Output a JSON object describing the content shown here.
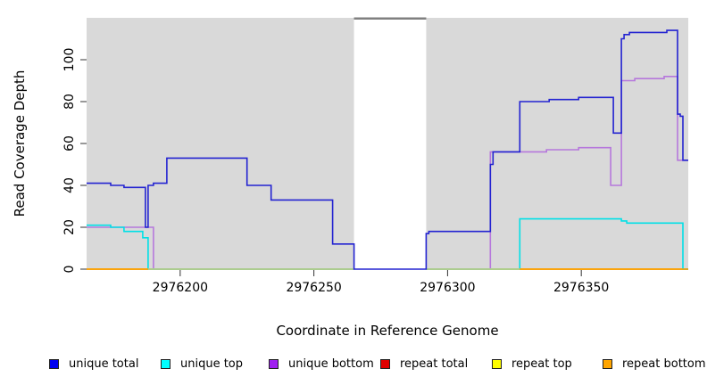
{
  "chart_data": {
    "type": "line",
    "subtype": "step",
    "title": "",
    "xlabel": "Coordinate in Reference Genome",
    "ylabel": "Read Coverage Depth",
    "x_domain": [
      2976165,
      2976390
    ],
    "ylim": [
      0,
      120
    ],
    "x_ticks": [
      2976200,
      2976250,
      2976300,
      2976350
    ],
    "y_ticks": [
      0,
      20,
      40,
      60,
      80,
      100
    ],
    "grid": false,
    "legend_position": "bottom",
    "panel_bg": "#d9d9d9",
    "tick_color": "#333333",
    "series": [
      {
        "label": "unique total",
        "line_color": "#2323d1",
        "legend_fill": "#0000ee",
        "points": [
          [
            2976165,
            41
          ],
          [
            2976174,
            40
          ],
          [
            2976179,
            39
          ],
          [
            2976187,
            20
          ],
          [
            2976188,
            40
          ],
          [
            2976190,
            41
          ],
          [
            2976195,
            53
          ],
          [
            2976225,
            40
          ],
          [
            2976234,
            33
          ],
          [
            2976257,
            12
          ],
          [
            2976265,
            0
          ],
          [
            2976292,
            17
          ],
          [
            2976293,
            18
          ],
          [
            2976316,
            50
          ],
          [
            2976317,
            56
          ],
          [
            2976327,
            80
          ],
          [
            2976338,
            81
          ],
          [
            2976349,
            82
          ],
          [
            2976362,
            65
          ],
          [
            2976365,
            110
          ],
          [
            2976366,
            112
          ],
          [
            2976368,
            113
          ],
          [
            2976382,
            114
          ],
          [
            2976386,
            74
          ],
          [
            2976387,
            73
          ],
          [
            2976388,
            52
          ]
        ]
      },
      {
        "label": "unique top",
        "line_color": "#00e0e6",
        "legend_fill": "#00ffff",
        "points": [
          [
            2976165,
            21
          ],
          [
            2976174,
            20
          ],
          [
            2976179,
            18
          ],
          [
            2976186,
            15
          ],
          [
            2976188,
            0
          ],
          [
            2976327,
            24
          ],
          [
            2976365,
            23
          ],
          [
            2976367,
            22
          ],
          [
            2976388,
            0
          ]
        ]
      },
      {
        "label": "unique bottom",
        "line_color": "#b678dc",
        "legend_fill": "#a020f0",
        "points": [
          [
            2976165,
            20
          ],
          [
            2976190,
            0
          ],
          [
            2976316,
            56
          ],
          [
            2976337,
            57
          ],
          [
            2976349,
            58
          ],
          [
            2976361,
            40
          ],
          [
            2976365,
            90
          ],
          [
            2976370,
            91
          ],
          [
            2976381,
            92
          ],
          [
            2976386,
            52
          ]
        ]
      },
      {
        "label": "repeat total",
        "line_color": "#dd0000",
        "legend_fill": "#e00000",
        "points": [
          [
            2976165,
            0
          ]
        ]
      },
      {
        "label": "repeat top",
        "line_color": "#ffff00",
        "legend_fill": "#ffff00",
        "points": [
          [
            2976165,
            0
          ]
        ]
      },
      {
        "label": "repeat bottom",
        "line_color": "#ff9d00",
        "legend_fill": "#ffa500",
        "points": [
          [
            2976165,
            0
          ]
        ]
      }
    ],
    "gap_region": {
      "x_start": 2976265,
      "x_end": 2976292,
      "fill": "#ffffff",
      "top_border_color": "#808080"
    },
    "zero_line_overlap": {
      "color": "#a9d7a2",
      "segments": [
        [
          2976188,
          2976265
        ],
        [
          2976292,
          2976327
        ]
      ]
    }
  }
}
